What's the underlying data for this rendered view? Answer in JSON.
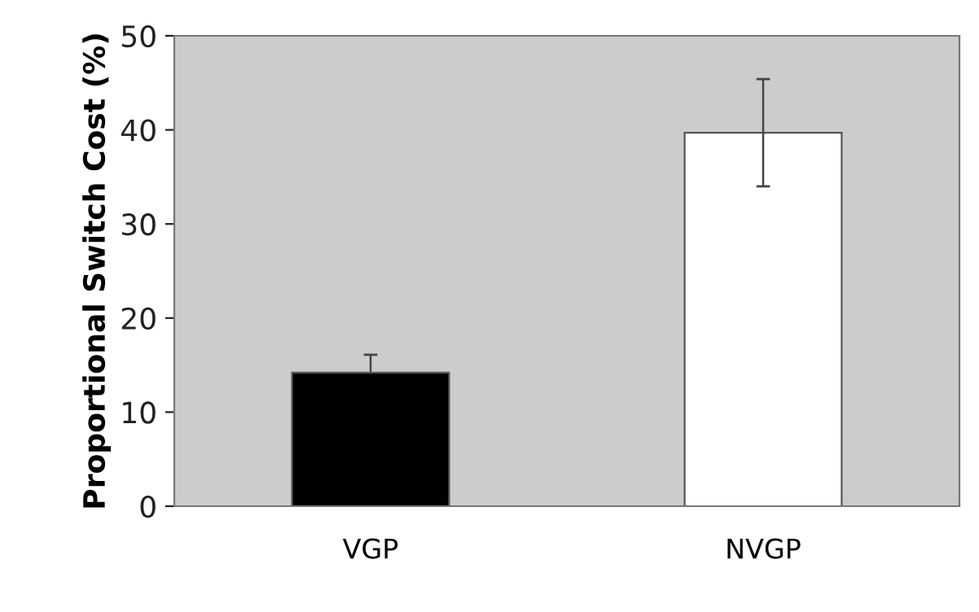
{
  "chart_data": {
    "type": "bar",
    "ylabel": "Proportional Switch Cost (%)",
    "categories": [
      "VGP",
      "NVGP"
    ],
    "values": [
      14.2,
      39.7
    ],
    "colors": [
      "#000000",
      "#ffffff"
    ],
    "errors": [
      1.9,
      [
        34.0,
        45.4
      ]
    ],
    "ylim": [
      0,
      50
    ],
    "yticks": [
      0,
      10,
      20,
      30,
      40,
      50
    ],
    "grid": false,
    "legend": false
  }
}
